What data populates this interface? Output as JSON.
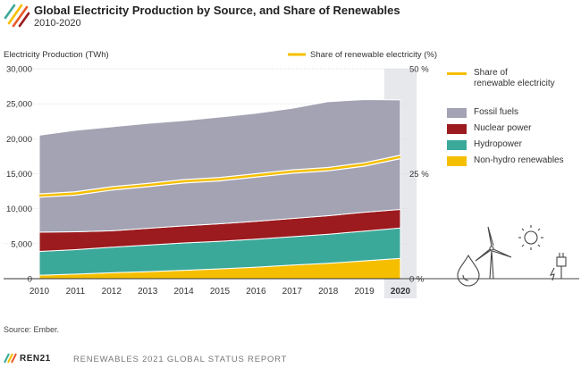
{
  "header": {
    "title": "Global Electricity Production by Source, and Share of Renewables",
    "subtitle": "2010-2020",
    "source": "Source: Ember.",
    "brand": "REN21",
    "report": "RENEWABLES 2021 GLOBAL STATUS REPORT"
  },
  "legend": {
    "share": "Share of\nrenewable electricity",
    "fossil": "Fossil fuels",
    "nuclear": "Nuclear power",
    "hydro": "Hydropower",
    "nonhydro": "Non-hydro renewables"
  },
  "icons": [
    "logo-stripes-icon",
    "water-drop-icon",
    "wind-turbine-icon",
    "sun-icon",
    "electric-plug-icon"
  ],
  "colors": {
    "fossil": "#a3a3b4",
    "nuclear": "#9b1b1e",
    "hydro": "#3aa99a",
    "nonhydro": "#f5bf00",
    "share_line": "#f5bf00",
    "highlight": "#e6e8ec"
  },
  "chart_data": {
    "type": "area",
    "stacked": true,
    "x": [
      2010,
      2011,
      2012,
      2013,
      2014,
      2015,
      2016,
      2017,
      2018,
      2019,
      2020
    ],
    "highlight_x": 2020,
    "ylabel": "Electricity Production (TWh)",
    "ylim": [
      0,
      30000
    ],
    "yticks": [
      "0",
      "5,000",
      "10,000",
      "15,000",
      "20,000",
      "25,000",
      "30,000"
    ],
    "y2label": "Share of renewable electricity (%)",
    "y2lim": [
      0,
      50
    ],
    "y2ticks": [
      "0 %",
      "25 %",
      "50 %"
    ],
    "series": [
      {
        "name": "Non-hydro renewables",
        "key": "nonhydro",
        "values": [
          500,
          650,
          850,
          1000,
          1200,
          1400,
          1650,
          1950,
          2200,
          2550,
          2900
        ]
      },
      {
        "name": "Hydropower",
        "key": "hydro",
        "values": [
          3400,
          3500,
          3650,
          3800,
          3900,
          3950,
          4000,
          4050,
          4150,
          4250,
          4350
        ]
      },
      {
        "name": "Nuclear power",
        "key": "nuclear",
        "values": [
          2750,
          2550,
          2350,
          2400,
          2450,
          2500,
          2550,
          2600,
          2650,
          2700,
          2650
        ]
      },
      {
        "name": "Fossil fuels",
        "key": "fossil",
        "values": [
          13850,
          14500,
          14850,
          15000,
          15050,
          15250,
          15450,
          15750,
          16300,
          16100,
          15650
        ]
      }
    ],
    "share_series": {
      "name": "Share of renewable electricity",
      "values": [
        19.8,
        20.3,
        21.5,
        22.3,
        23.2,
        23.7,
        24.6,
        25.5,
        26.1,
        27.2,
        29.0
      ]
    },
    "legend_position": "right"
  }
}
